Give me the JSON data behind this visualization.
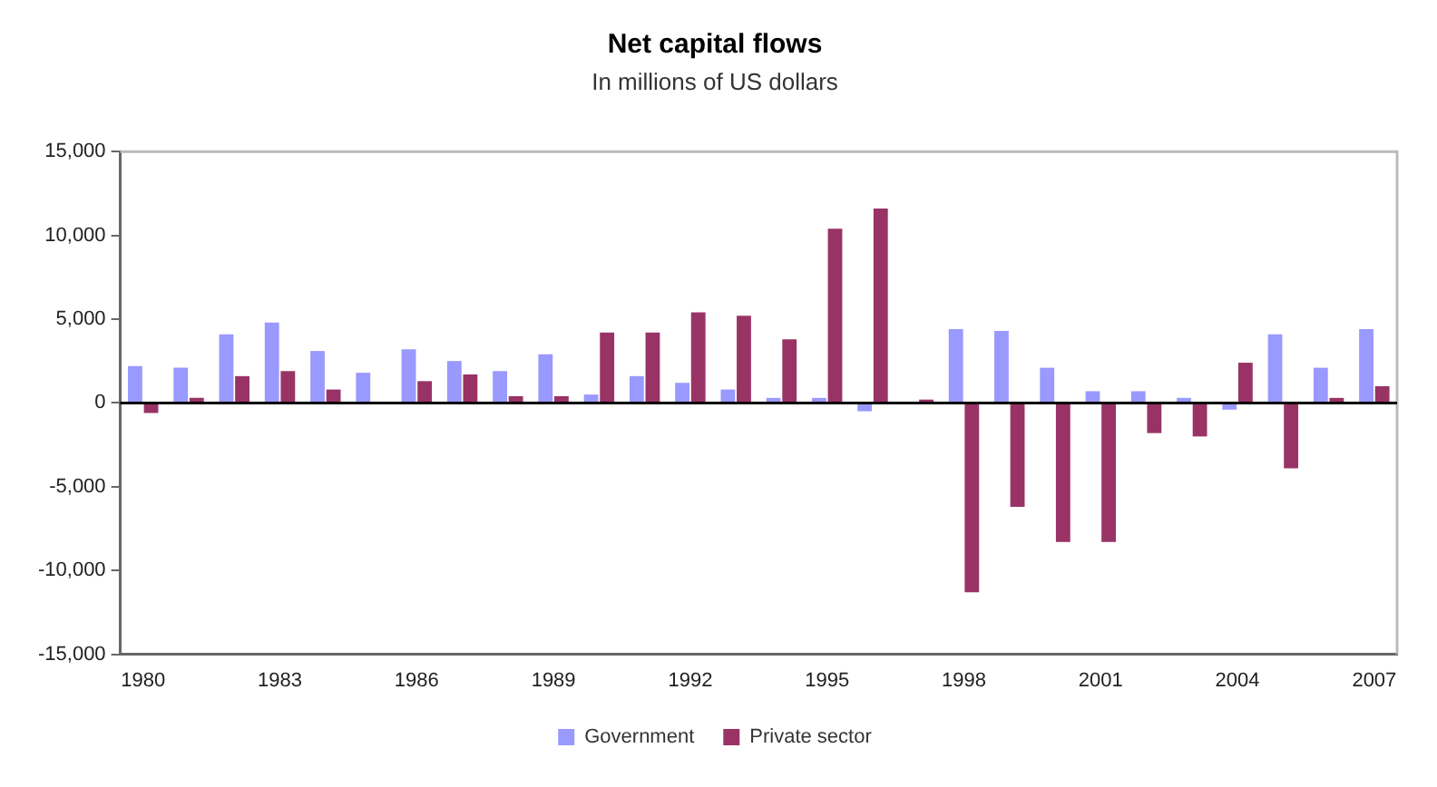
{
  "chart_data": {
    "type": "bar",
    "title": "Net capital flows",
    "subtitle": "In millions of US dollars",
    "categories": [
      "1980",
      null,
      null,
      "1983",
      null,
      null,
      "1986",
      null,
      null,
      "1989",
      null,
      null,
      "1992",
      null,
      null,
      "1995",
      null,
      null,
      "1998",
      null,
      null,
      "2001",
      null,
      null,
      "2004",
      null,
      null,
      "2007"
    ],
    "series": [
      {
        "name": "Government",
        "color": "#9999ff",
        "values": [
          2200,
          2100,
          4100,
          4800,
          3100,
          1800,
          3200,
          2500,
          1900,
          2900,
          500,
          1600,
          1200,
          800,
          300,
          300,
          -500,
          0,
          4400,
          4300,
          2100,
          700,
          700,
          300,
          -400,
          4100,
          2100,
          4400
        ]
      },
      {
        "name": "Private sector",
        "color": "#993366",
        "values": [
          -600,
          300,
          1600,
          1900,
          800,
          null,
          1300,
          1700,
          400,
          400,
          4200,
          4200,
          5400,
          5200,
          3800,
          10400,
          11600,
          200,
          -11300,
          -6200,
          -8300,
          -8300,
          -1800,
          -2000,
          2400,
          -3900,
          300,
          1000
        ]
      }
    ],
    "ylim": [
      -15000,
      15000
    ],
    "yticks": [
      {
        "value": -15000,
        "label": "-15,000"
      },
      {
        "value": -10000,
        "label": "-10,000"
      },
      {
        "value": -5000,
        "label": "-5,000"
      },
      0,
      {
        "value": 5000,
        "label": "5,000"
      },
      {
        "value": 10000,
        "label": "10,000"
      },
      {
        "value": 15000,
        "label": "15,000"
      }
    ],
    "ref_lines": [
      {
        "axis": "y",
        "value": 0,
        "color": "#000000"
      }
    ],
    "grid": false,
    "legend": "bottom"
  }
}
